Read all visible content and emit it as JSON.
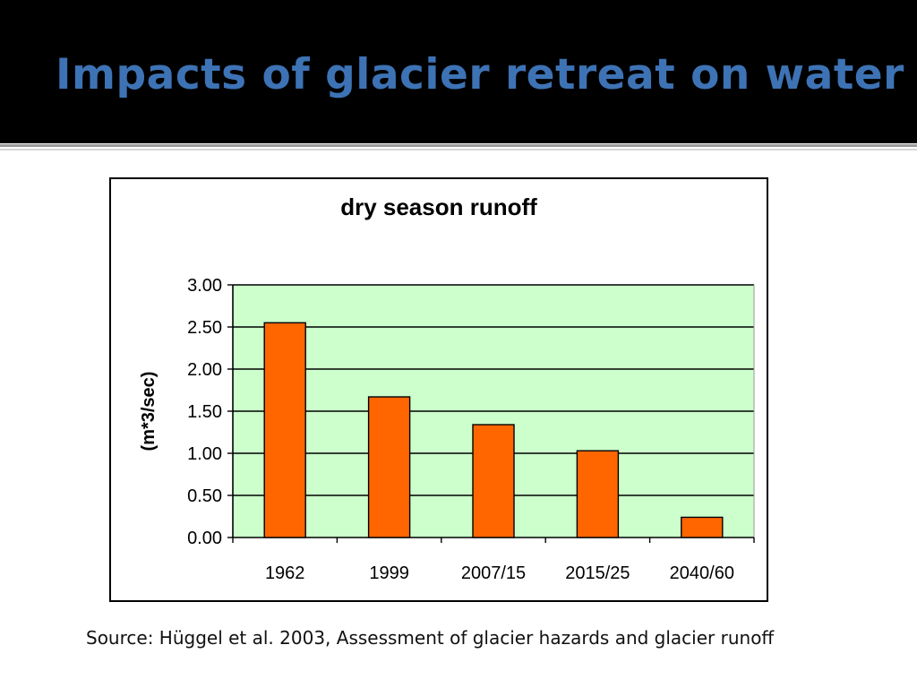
{
  "slide": {
    "title": "Impacts of glacier retreat on water",
    "title_color": "#3d73b5",
    "header_background": "#000000",
    "source": "Source: Hüggel et al. 2003, Assessment of glacier hazards and glacier runoff"
  },
  "chart_data": {
    "type": "bar",
    "title": "dry season runoff",
    "xlabel": "",
    "ylabel": "(m*3/sec)",
    "categories": [
      "1962",
      "1999",
      "2007/15",
      "2015/25",
      "2040/60"
    ],
    "values": [
      2.55,
      1.67,
      1.34,
      1.03,
      0.24
    ],
    "ylim": [
      0,
      3
    ],
    "y_ticks": [
      "0.00",
      "0.50",
      "1.00",
      "1.50",
      "2.00",
      "2.50",
      "3.00"
    ],
    "grid": true,
    "legend": "none",
    "colors": {
      "bar": "#ff6600",
      "bar_outline": "#000000",
      "plot_background": "#ccffcc"
    }
  }
}
